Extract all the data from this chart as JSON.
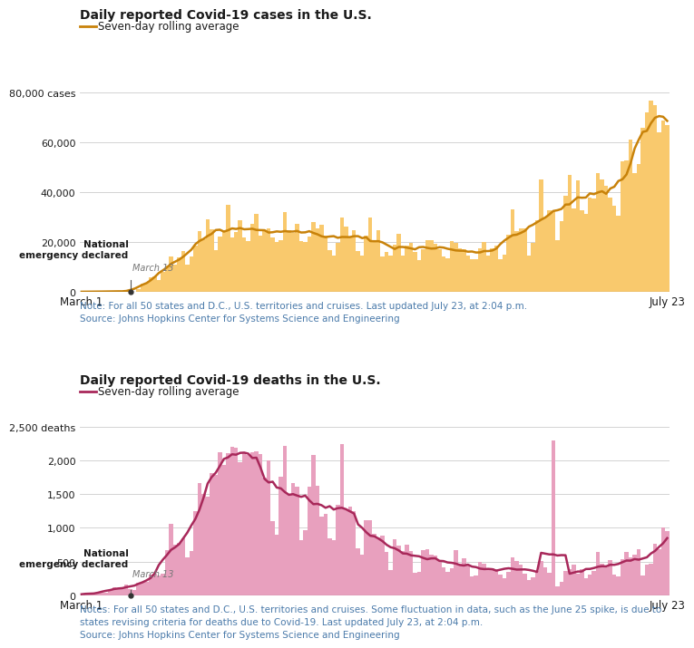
{
  "title_cases": "Daily reported Covid-19 cases in the U.S.",
  "title_deaths": "Daily reported Covid-19 deaths in the U.S.",
  "legend_label": "Seven-day rolling average",
  "bar_color_cases": "#F9C96D",
  "line_color_cases": "#C8820A",
  "bar_color_deaths": "#E8A0BE",
  "line_color_deaths": "#A8285A",
  "annotation_text_line1": "National",
  "annotation_text_line2": "emergency declared",
  "annotation_date": "March 13",
  "note_cases": "Note: For all 50 states and D.C., U.S. territories and cruises. Last updated July 23, at 2:04 p.m.\nSource: Johns Hopkins Center for Systems Science and Engineering",
  "note_deaths": "Notes: For all 50 states and D.C., U.S. territories and cruises. Some fluctuation in data, such as the June 25 spike, is due to\nstates revising criteria for deaths due to Covid-19. Last updated July 23, at 2:04 p.m.\nSource: Johns Hopkins Center for Systems Science and Engineering",
  "xlabel_left": "March 1",
  "xlabel_right": "July 23",
  "yticks_cases": [
    0,
    20000,
    40000,
    60000,
    80000
  ],
  "ytick_labels_cases": [
    "0",
    "20,000",
    "40,000",
    "60,000",
    "80,000 cases"
  ],
  "yticks_deaths": [
    0,
    500,
    1000,
    1500,
    2000,
    2500
  ],
  "ytick_labels_deaths": [
    "0",
    "500",
    "1,000",
    "1,500",
    "2,000",
    "2,500 deaths"
  ],
  "background_color": "#FFFFFF",
  "grid_color": "#CCCCCC",
  "text_color": "#1a1a1a",
  "note_color": "#4a7aaa"
}
